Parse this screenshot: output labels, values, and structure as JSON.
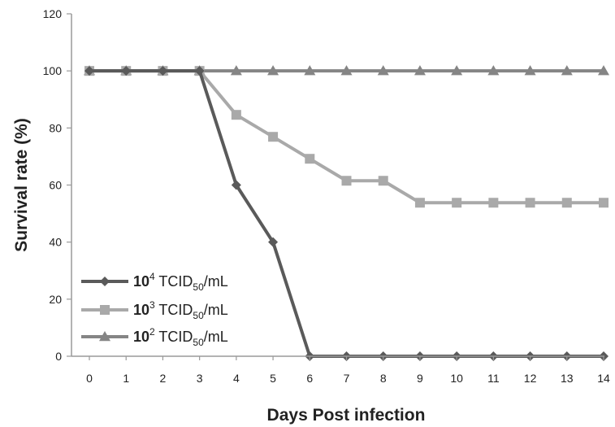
{
  "chart_data": {
    "type": "line",
    "title": "",
    "xlabel": "Days Post infection",
    "ylabel": "Survival rate (%)",
    "x": [
      0,
      1,
      2,
      3,
      4,
      5,
      6,
      7,
      8,
      9,
      10,
      11,
      12,
      13,
      14
    ],
    "xlim": [
      0,
      14
    ],
    "ylim": [
      0,
      120
    ],
    "yticks": [
      0,
      20,
      40,
      60,
      80,
      100,
      120
    ],
    "grid": false,
    "legend_position": "bottom-left",
    "series": [
      {
        "legend_base": "10",
        "legend_exp": "4",
        "legend_unit": "TCID",
        "legend_sub": "50",
        "legend_tail": "/mL",
        "marker": "diamond",
        "color": "#5a5a5a",
        "values": [
          100,
          100,
          100,
          100,
          60,
          40,
          0,
          0,
          0,
          0,
          0,
          0,
          0,
          0,
          0
        ]
      },
      {
        "legend_base": "10",
        "legend_exp": "3",
        "legend_unit": "TCID",
        "legend_sub": "50",
        "legend_tail": "/mL",
        "marker": "square",
        "color": "#a9a9a9",
        "values": [
          100,
          100,
          100,
          100,
          84.6,
          76.9,
          69.2,
          61.5,
          61.5,
          53.8,
          53.8,
          53.8,
          53.8,
          53.8,
          53.8
        ]
      },
      {
        "legend_base": "10",
        "legend_exp": "2",
        "legend_unit": "TCID",
        "legend_sub": "50",
        "legend_tail": "/mL",
        "marker": "triangle",
        "color": "#858585",
        "values": [
          100,
          100,
          100,
          100,
          100,
          100,
          100,
          100,
          100,
          100,
          100,
          100,
          100,
          100,
          100
        ]
      }
    ]
  }
}
